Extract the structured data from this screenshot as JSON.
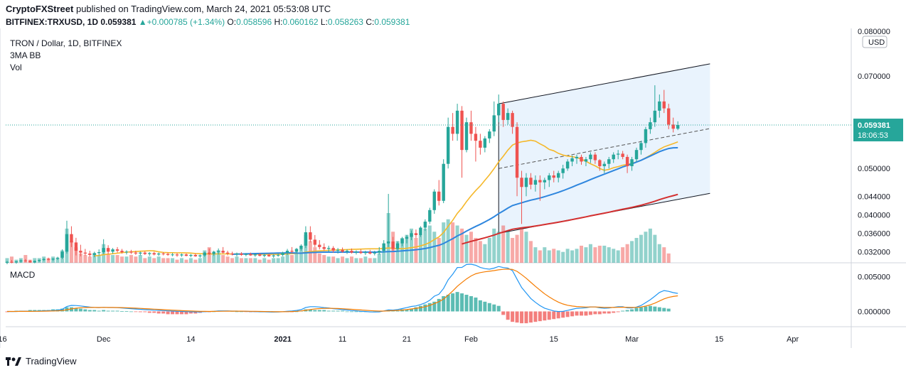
{
  "header": {
    "author": "CryptoFXStreet",
    "published": " published on TradingView.com, March 24, 2021 05:53:08 UTC"
  },
  "symbol_line": {
    "symbol": "BITFINEX:TRXUSD, 1D",
    "price": "0.059381",
    "change": "+0.000785 (+1.34%)",
    "o_label": "O:",
    "o": "0.058596",
    "h_label": "H:",
    "h": "0.060162",
    "l_label": "L:",
    "l": "0.058263",
    "c_label": "C:",
    "c": "0.059381"
  },
  "legend": {
    "title": "TRON / Dollar, 1D, BITFINEX",
    "ind1": "3MA BB",
    "ind2": "Vol",
    "macd": "MACD"
  },
  "price_axis": {
    "currency": "USD",
    "ticks": [
      "0.080000",
      "0.070000",
      "0.050000",
      "0.044000",
      "0.040000",
      "0.036000",
      "0.032000"
    ],
    "tick_values": [
      0.08,
      0.07,
      0.05,
      0.044,
      0.04,
      0.036,
      0.032
    ],
    "last_price": "0.059381",
    "countdown": "18:06:53"
  },
  "macd_axis": {
    "ticks": [
      "0.005000",
      "0.000000"
    ],
    "tick_values": [
      0.005,
      0
    ]
  },
  "x_axis": {
    "labels": [
      "16",
      "Dec",
      "14",
      "2021",
      "11",
      "21",
      "Feb",
      "15",
      "Mar",
      "15",
      "Apr"
    ]
  },
  "footer": {
    "brand": "TradingView"
  },
  "colors": {
    "up": "#26a69a",
    "down": "#ef5350",
    "ma50": "#f5b82a",
    "ma100": "#2e86de",
    "ma200": "#d32f2f",
    "macd": "#2196f3",
    "signal": "#f57c00",
    "channel_fill": "#e3f0fc"
  },
  "chart_data": {
    "type": "candlestick",
    "ohlc": [
      [
        0.0296,
        0.03,
        0.0293,
        0.0298
      ],
      [
        0.0298,
        0.0302,
        0.0295,
        0.0297
      ],
      [
        0.0297,
        0.03,
        0.0294,
        0.0299
      ],
      [
        0.0299,
        0.0303,
        0.0296,
        0.0301
      ],
      [
        0.0301,
        0.0304,
        0.0298,
        0.03
      ],
      [
        0.03,
        0.0302,
        0.0296,
        0.0297
      ],
      [
        0.0297,
        0.0301,
        0.0295,
        0.03
      ],
      [
        0.03,
        0.0303,
        0.0298,
        0.0302
      ],
      [
        0.0302,
        0.0306,
        0.03,
        0.0304
      ],
      [
        0.0304,
        0.0307,
        0.0301,
        0.0303
      ],
      [
        0.0303,
        0.0306,
        0.03,
        0.0305
      ],
      [
        0.0305,
        0.0309,
        0.0302,
        0.0307
      ],
      [
        0.0307,
        0.0325,
        0.0304,
        0.032
      ],
      [
        0.032,
        0.0387,
        0.0316,
        0.0358
      ],
      [
        0.0358,
        0.0375,
        0.033,
        0.034
      ],
      [
        0.034,
        0.035,
        0.0312,
        0.0322
      ],
      [
        0.0322,
        0.0335,
        0.031,
        0.0318
      ],
      [
        0.0318,
        0.0326,
        0.0312,
        0.0316
      ],
      [
        0.0316,
        0.0322,
        0.0309,
        0.0313
      ],
      [
        0.0313,
        0.032,
        0.0308,
        0.0317
      ],
      [
        0.0317,
        0.0325,
        0.0312,
        0.0319
      ],
      [
        0.0319,
        0.0347,
        0.0315,
        0.0328
      ],
      [
        0.0328,
        0.0334,
        0.0315,
        0.032
      ],
      [
        0.032,
        0.0328,
        0.0316,
        0.0325
      ],
      [
        0.0325,
        0.033,
        0.0318,
        0.0322
      ],
      [
        0.0322,
        0.0326,
        0.0316,
        0.0319
      ],
      [
        0.0319,
        0.0323,
        0.0314,
        0.032
      ],
      [
        0.032,
        0.0324,
        0.0315,
        0.0318
      ],
      [
        0.0318,
        0.0322,
        0.0313,
        0.0316
      ],
      [
        0.0316,
        0.032,
        0.0312,
        0.0318
      ],
      [
        0.0318,
        0.0321,
        0.0313,
        0.0315
      ],
      [
        0.0315,
        0.0319,
        0.0311,
        0.0317
      ],
      [
        0.0317,
        0.032,
        0.0312,
        0.0314
      ],
      [
        0.0314,
        0.0318,
        0.0311,
        0.0316
      ],
      [
        0.0316,
        0.0319,
        0.0312,
        0.0315
      ],
      [
        0.0315,
        0.0318,
        0.0311,
        0.0313
      ],
      [
        0.0313,
        0.0317,
        0.031,
        0.0314
      ],
      [
        0.0314,
        0.0317,
        0.0309,
        0.0312
      ],
      [
        0.0312,
        0.0316,
        0.0309,
        0.0314
      ],
      [
        0.0314,
        0.0316,
        0.031,
        0.0311
      ],
      [
        0.0311,
        0.0315,
        0.0308,
        0.0313
      ],
      [
        0.0313,
        0.0316,
        0.0309,
        0.031
      ],
      [
        0.031,
        0.0314,
        0.0307,
        0.0312
      ],
      [
        0.0312,
        0.032,
        0.0309,
        0.0318
      ],
      [
        0.0318,
        0.0327,
        0.0313,
        0.0315
      ],
      [
        0.0315,
        0.0322,
        0.0311,
        0.032
      ],
      [
        0.032,
        0.0327,
        0.0314,
        0.0322
      ],
      [
        0.0322,
        0.033,
        0.0316,
        0.0318
      ],
      [
        0.0318,
        0.0322,
        0.0312,
        0.0316
      ],
      [
        0.0316,
        0.032,
        0.0312,
        0.0314
      ],
      [
        0.0314,
        0.0318,
        0.031,
        0.0316
      ],
      [
        0.0316,
        0.0319,
        0.0311,
        0.0313
      ],
      [
        0.0313,
        0.0317,
        0.031,
        0.0315
      ],
      [
        0.0315,
        0.0318,
        0.0311,
        0.0312
      ],
      [
        0.0312,
        0.0316,
        0.0309,
        0.0314
      ],
      [
        0.0314,
        0.0317,
        0.031,
        0.0311
      ],
      [
        0.0311,
        0.0315,
        0.0308,
        0.0313
      ],
      [
        0.0313,
        0.0316,
        0.0309,
        0.031
      ],
      [
        0.031,
        0.0314,
        0.0307,
        0.0312
      ],
      [
        0.0312,
        0.0316,
        0.0309,
        0.0313
      ],
      [
        0.0313,
        0.032,
        0.031,
        0.0318
      ],
      [
        0.0318,
        0.0326,
        0.0313,
        0.0322
      ],
      [
        0.0322,
        0.033,
        0.0317,
        0.032
      ],
      [
        0.032,
        0.0328,
        0.0316,
        0.0326
      ],
      [
        0.0326,
        0.0336,
        0.0322,
        0.0333
      ],
      [
        0.0333,
        0.0375,
        0.0328,
        0.0362
      ],
      [
        0.0362,
        0.0375,
        0.034,
        0.0346
      ],
      [
        0.0346,
        0.0356,
        0.033,
        0.0335
      ],
      [
        0.0335,
        0.0345,
        0.0325,
        0.033
      ],
      [
        0.033,
        0.0338,
        0.0322,
        0.0326
      ],
      [
        0.0326,
        0.0333,
        0.032,
        0.0328
      ],
      [
        0.0328,
        0.0332,
        0.0318,
        0.0322
      ],
      [
        0.0322,
        0.0328,
        0.0316,
        0.0324
      ],
      [
        0.0324,
        0.0329,
        0.0318,
        0.032
      ],
      [
        0.032,
        0.0325,
        0.0315,
        0.0322
      ],
      [
        0.0322,
        0.0327,
        0.0316,
        0.0318
      ],
      [
        0.0318,
        0.0323,
        0.0314,
        0.032
      ],
      [
        0.032,
        0.0325,
        0.0315,
        0.0317
      ],
      [
        0.0317,
        0.0322,
        0.0313,
        0.0319
      ],
      [
        0.0319,
        0.0324,
        0.0314,
        0.0316
      ],
      [
        0.0316,
        0.0322,
        0.0312,
        0.0318
      ],
      [
        0.0318,
        0.033,
        0.0314,
        0.0322
      ],
      [
        0.0322,
        0.0345,
        0.0318,
        0.0338
      ],
      [
        0.0338,
        0.0445,
        0.033,
        0.0342
      ],
      [
        0.0342,
        0.0352,
        0.0322,
        0.0326
      ],
      [
        0.0326,
        0.0342,
        0.032,
        0.0338
      ],
      [
        0.0338,
        0.0352,
        0.0332,
        0.0348
      ],
      [
        0.0348,
        0.0356,
        0.0338,
        0.0352
      ],
      [
        0.0352,
        0.0366,
        0.0345,
        0.036
      ],
      [
        0.036,
        0.0368,
        0.035,
        0.0356
      ],
      [
        0.0356,
        0.0375,
        0.0352,
        0.0372
      ],
      [
        0.0372,
        0.039,
        0.0365,
        0.0385
      ],
      [
        0.0385,
        0.0415,
        0.038,
        0.041
      ],
      [
        0.041,
        0.0455,
        0.0402,
        0.045
      ],
      [
        0.045,
        0.0475,
        0.042,
        0.043
      ],
      [
        0.043,
        0.052,
        0.0425,
        0.051
      ],
      [
        0.051,
        0.061,
        0.05,
        0.059
      ],
      [
        0.059,
        0.062,
        0.056,
        0.0575
      ],
      [
        0.0575,
        0.064,
        0.056,
        0.0625
      ],
      [
        0.0625,
        0.0635,
        0.048,
        0.054
      ],
      [
        0.054,
        0.061,
        0.0535,
        0.06
      ],
      [
        0.06,
        0.0625,
        0.056,
        0.0575
      ],
      [
        0.0575,
        0.059,
        0.0515,
        0.056
      ],
      [
        0.056,
        0.0575,
        0.053,
        0.0545
      ],
      [
        0.0545,
        0.057,
        0.0535,
        0.0565
      ],
      [
        0.0565,
        0.0585,
        0.0555,
        0.058
      ],
      [
        0.058,
        0.0645,
        0.057,
        0.0615
      ],
      [
        0.0615,
        0.066,
        0.06,
        0.064
      ],
      [
        0.064,
        0.0645,
        0.059,
        0.0605
      ],
      [
        0.0605,
        0.063,
        0.0595,
        0.062
      ],
      [
        0.062,
        0.0625,
        0.0575,
        0.059
      ],
      [
        0.059,
        0.06,
        0.044,
        0.048
      ],
      [
        0.048,
        0.0495,
        0.038,
        0.046
      ],
      [
        0.046,
        0.049,
        0.044,
        0.048
      ],
      [
        0.048,
        0.049,
        0.0455,
        0.0465
      ],
      [
        0.0465,
        0.0485,
        0.045,
        0.0475
      ],
      [
        0.0475,
        0.0485,
        0.043,
        0.047
      ],
      [
        0.047,
        0.048,
        0.0455,
        0.0475
      ],
      [
        0.0475,
        0.049,
        0.046,
        0.0485
      ],
      [
        0.0485,
        0.0495,
        0.047,
        0.048
      ],
      [
        0.048,
        0.0495,
        0.047,
        0.049
      ],
      [
        0.049,
        0.0508,
        0.0478,
        0.05
      ],
      [
        0.05,
        0.052,
        0.0495,
        0.0515
      ],
      [
        0.0515,
        0.0528,
        0.0505,
        0.0522
      ],
      [
        0.0522,
        0.053,
        0.051,
        0.0525
      ],
      [
        0.0525,
        0.053,
        0.0508,
        0.0515
      ],
      [
        0.0515,
        0.0525,
        0.0505,
        0.052
      ],
      [
        0.052,
        0.0535,
        0.0512,
        0.053
      ],
      [
        0.053,
        0.0535,
        0.051,
        0.0518
      ],
      [
        0.0518,
        0.052,
        0.0495,
        0.0505
      ],
      [
        0.0505,
        0.0515,
        0.049,
        0.051
      ],
      [
        0.051,
        0.0525,
        0.05,
        0.052
      ],
      [
        0.052,
        0.0535,
        0.0512,
        0.053
      ],
      [
        0.053,
        0.054,
        0.052,
        0.0532
      ],
      [
        0.0532,
        0.0538,
        0.052,
        0.0525
      ],
      [
        0.0525,
        0.053,
        0.049,
        0.0505
      ],
      [
        0.0505,
        0.0525,
        0.0495,
        0.052
      ],
      [
        0.052,
        0.0545,
        0.0515,
        0.054
      ],
      [
        0.054,
        0.056,
        0.053,
        0.0555
      ],
      [
        0.0555,
        0.059,
        0.0545,
        0.0585
      ],
      [
        0.0585,
        0.061,
        0.0575,
        0.06
      ],
      [
        0.06,
        0.068,
        0.059,
        0.0625
      ],
      [
        0.0625,
        0.066,
        0.061,
        0.0645
      ],
      [
        0.0645,
        0.067,
        0.062,
        0.063
      ],
      [
        0.063,
        0.064,
        0.0585,
        0.0595
      ],
      [
        0.0595,
        0.061,
        0.0578,
        0.0586
      ],
      [
        0.0586,
        0.0602,
        0.0583,
        0.0594
      ]
    ],
    "volume": [
      3,
      4,
      2,
      3,
      5,
      2,
      3,
      3,
      4,
      3,
      4,
      3,
      8,
      22,
      14,
      10,
      6,
      5,
      4,
      6,
      5,
      12,
      6,
      5,
      5,
      4,
      4,
      5,
      4,
      5,
      3,
      4,
      3,
      4,
      3,
      3,
      3,
      2,
      3,
      2,
      3,
      2,
      3,
      8,
      10,
      6,
      8,
      5,
      4,
      3,
      4,
      3,
      3,
      3,
      3,
      2,
      3,
      2,
      3,
      3,
      4,
      6,
      5,
      7,
      9,
      18,
      14,
      10,
      6,
      5,
      4,
      4,
      3,
      4,
      3,
      4,
      3,
      3,
      4,
      3,
      3,
      6,
      10,
      32,
      20,
      14,
      16,
      18,
      22,
      16,
      18,
      22,
      24,
      20,
      16,
      26,
      28,
      26,
      24,
      22,
      18,
      20,
      16,
      14,
      12,
      16,
      22,
      20,
      24,
      20,
      16,
      18,
      22,
      20,
      14,
      10,
      8,
      10,
      8,
      9,
      8,
      7,
      9,
      8,
      9,
      11,
      10,
      12,
      10,
      11,
      11,
      10,
      9,
      8,
      10,
      12,
      14,
      16,
      18,
      20,
      22,
      18,
      12,
      10,
      6
    ],
    "macd_hist": [
      -0.0001,
      5e-05,
      0.0001,
      0.0001,
      0.0001,
      0.0002,
      0.0002,
      0.0002,
      0.0002,
      0.0002,
      0.0003,
      0.0003,
      0.0004,
      0.0006,
      0.0006,
      0.0005,
      0.0004,
      0.0003,
      0.0002,
      0.0002,
      0.0001,
      0.0002,
      0.0001,
      0.0001,
      0.0001,
      5e-05,
      5e-05,
      0,
      -5e-05,
      -0.0001,
      -0.0001,
      -0.0002,
      -0.0002,
      -0.0003,
      -0.0003,
      -0.0004,
      -0.0004,
      -0.0004,
      -0.0004,
      -0.0004,
      -0.0003,
      -0.0003,
      -0.0002,
      -0.0001,
      -0.0001,
      0,
      0.0001,
      0.0001,
      0.0001,
      5e-05,
      0,
      0,
      -5e-05,
      -0.0001,
      -0.0001,
      -0.0001,
      -0.0001,
      -0.0001,
      -0.0001,
      -0.0001,
      -0.0001,
      -0.0001,
      -0.0001,
      0,
      0.0001,
      0.0003,
      0.0003,
      0.0002,
      0.0002,
      0.0002,
      0.0001,
      0.0001,
      0.0001,
      0.0001,
      0,
      0,
      0,
      0,
      0,
      0,
      0,
      0.0001,
      0.0001,
      0.0002,
      0.0002,
      0.0002,
      0.0003,
      0.0003,
      0.0004,
      0.0006,
      0.0008,
      0.001,
      0.0012,
      0.0014,
      0.0018,
      0.0022,
      0.0024,
      0.0026,
      0.0028,
      0.0026,
      0.0024,
      0.0022,
      0.002,
      0.0016,
      0.0014,
      0.0012,
      0.001,
      0.0008,
      -0.0005,
      -0.0012,
      -0.0015,
      -0.0016,
      -0.0017,
      -0.0017,
      -0.0016,
      -0.0015,
      -0.0014,
      -0.0013,
      -0.0012,
      -0.0011,
      -0.001,
      -0.0009,
      -0.0008,
      -0.0007,
      -0.0006,
      -0.0006,
      -0.0006,
      -0.0005,
      -0.0004,
      -0.0004,
      -0.0003,
      -0.0003,
      -0.0002,
      -0.0001,
      0.0001,
      0.0002,
      0.0003,
      0.0005,
      0.0006,
      0.0007,
      0.0008,
      0.0007,
      0.0006,
      0.0005,
      0.0004
    ],
    "ylim": [
      0.0296,
      0.0803
    ],
    "macd_ylim": [
      -0.0022,
      0.0068
    ]
  }
}
